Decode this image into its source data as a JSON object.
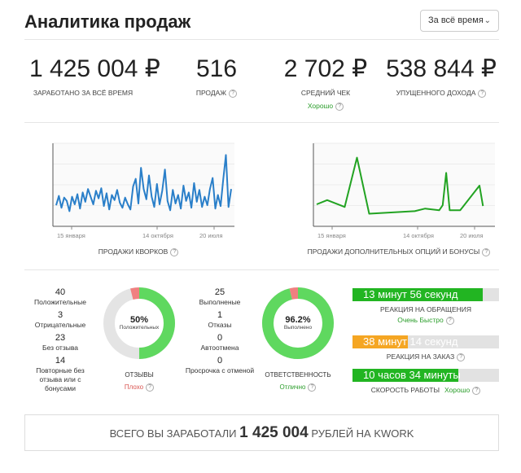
{
  "header": {
    "title": "Аналитика продаж",
    "period": "За всё время"
  },
  "stats": [
    {
      "value": "1 425 004 ₽",
      "label": "ЗАРАБОТАНО ЗА ВСЁ ВРЕМЯ",
      "help": "",
      "sub": ""
    },
    {
      "value": "516",
      "label": "ПРОДАЖ",
      "help": "?",
      "sub": ""
    },
    {
      "value": "2 702 ₽",
      "label": "СРЕДНИЙ ЧЕК",
      "help": "?",
      "sub": "Хорошо"
    },
    {
      "value": "538 844 ₽",
      "label": "УПУЩЕННОГО ДОХОДА",
      "help": "?",
      "sub": ""
    }
  ],
  "charts": {
    "left": {
      "caption": "ПРОДАЖИ КВОРКОВ",
      "ticks": [
        "15 января",
        "14 октября",
        "20 июля"
      ],
      "color": "#2a7fc9",
      "values": [
        2.1,
        3.2,
        1.8,
        3.0,
        2.6,
        1.4,
        3.1,
        2.2,
        3.4,
        1.7,
        3.6,
        2.5,
        4.0,
        3.1,
        2.2,
        3.8,
        2.9,
        4.1,
        2.0,
        3.5,
        1.6,
        3.3,
        2.7,
        3.9,
        2.4,
        1.8,
        3.0,
        2.2,
        1.6,
        4.3,
        5.2,
        2.3,
        6.5,
        4.0,
        2.8,
        5.6,
        3.1,
        1.9,
        4.6,
        2.2,
        3.8,
        6.3,
        2.6,
        1.5,
        3.9,
        2.3,
        3.3,
        1.7,
        4.4,
        2.6,
        3.6,
        1.8,
        4.7,
        2.5,
        3.9,
        1.9,
        3.1,
        2.1,
        4.0,
        5.3,
        1.7,
        3.3,
        2.0,
        5.1,
        8.0,
        1.9,
        4.0
      ]
    },
    "right": {
      "caption": "ПРОДАЖИ ДОПОЛНИТЕЛЬНЫХ ОПЦИЙ И БОНУСЫ",
      "ticks": [
        "15 января",
        "14 октября",
        "20 июля"
      ],
      "color": "#22a322",
      "points": [
        [
          0,
          2.2
        ],
        [
          0.06,
          2.7
        ],
        [
          0.16,
          1.9
        ],
        [
          0.23,
          7.7
        ],
        [
          0.3,
          1.1
        ],
        [
          0.56,
          1.4
        ],
        [
          0.62,
          1.7
        ],
        [
          0.7,
          1.5
        ],
        [
          0.72,
          2.1
        ],
        [
          0.74,
          5.9
        ],
        [
          0.76,
          1.5
        ],
        [
          0.82,
          1.5
        ],
        [
          0.93,
          4.4
        ],
        [
          0.95,
          2.0
        ]
      ]
    }
  },
  "reviews": {
    "items": [
      {
        "n": "40",
        "t": "Положительные"
      },
      {
        "n": "3",
        "t": "Отрицательные"
      },
      {
        "n": "23",
        "t": "Без отзыва"
      },
      {
        "n": "14",
        "t": "Повторные без отзыва или с бонусами"
      }
    ],
    "donut": {
      "percent": "50%",
      "sub": "Положительных",
      "fraction": 0.5,
      "red_fraction": 0.04
    },
    "label": "ОТЗЫВЫ",
    "status": "Плохо",
    "status_color": "#d9534f"
  },
  "orders": {
    "items": [
      {
        "n": "25",
        "t": "Выполненые"
      },
      {
        "n": "1",
        "t": "Отказы"
      },
      {
        "n": "0",
        "t": "Автоотмена"
      },
      {
        "n": "0",
        "t": "Просрочка с отменой"
      }
    ],
    "donut": {
      "percent": "96.2%",
      "sub": "Выполнено",
      "fraction": 0.962,
      "red_fraction": 0.038
    },
    "label": "ОТВЕТСТВЕННОСТЬ",
    "status": "Отлично",
    "status_color": "#2a9d2a"
  },
  "bars": [
    {
      "text": "13 минут 56 секунд",
      "fill": 0.89,
      "color": "#22b522",
      "caption": "РЕАКЦИЯ НА ОБРАЩЕНИЯ",
      "note": "Очень Быстро"
    },
    {
      "text": "38 минут 14 секунд",
      "fill": 0.38,
      "color": "#f5a623",
      "caption": "РЕАКЦИЯ НА ЗАКАЗ",
      "note": ""
    },
    {
      "text": "10 часов 34 минуты",
      "fill": 0.72,
      "color": "#22b522",
      "caption": "СКОРОСТЬ РАБОТЫ",
      "note": "Хорошо"
    }
  ],
  "total": {
    "prefix": "ВСЕГО ВЫ ЗАРАБОТАЛИ",
    "amount": "1 425 004",
    "suffix": "РУБЛЕЙ НА KWORK"
  }
}
